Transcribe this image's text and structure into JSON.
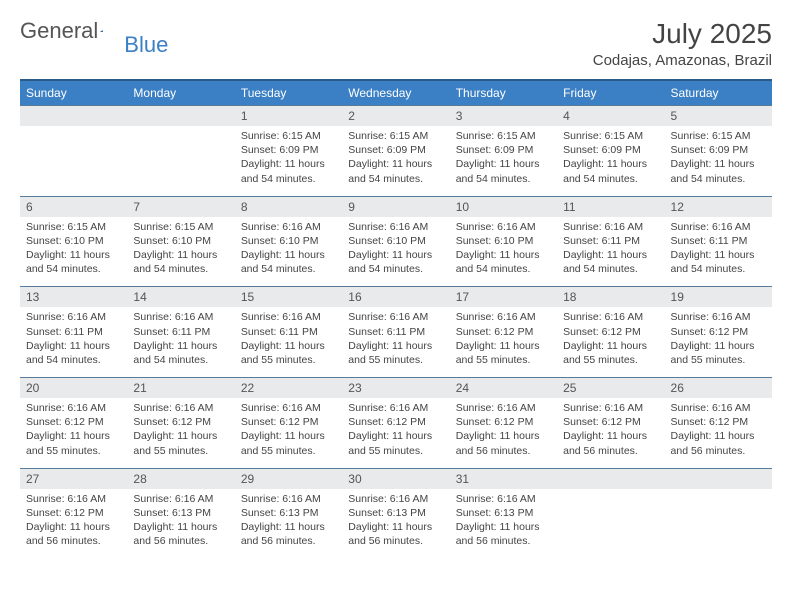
{
  "brand": {
    "name_a": "General",
    "name_b": "Blue"
  },
  "title": "July 2025",
  "location": "Codajas, Amazonas, Brazil",
  "day_headers": [
    "Sunday",
    "Monday",
    "Tuesday",
    "Wednesday",
    "Thursday",
    "Friday",
    "Saturday"
  ],
  "colors": {
    "header_bg": "#3b7fc4",
    "header_border_top": "#2a5a8a",
    "daynum_bg": "#e8eaec",
    "daynum_border_top": "#5a7a9a",
    "text": "#444444",
    "logo_gray": "#555555",
    "logo_blue": "#3b7fc4",
    "background": "#ffffff"
  },
  "typography": {
    "title_fontsize": 28,
    "location_fontsize": 15,
    "dow_fontsize": 12,
    "daynum_fontsize": 12,
    "info_fontsize": 10.5
  },
  "weeks": [
    {
      "nums": [
        "",
        "",
        "1",
        "2",
        "3",
        "4",
        "5"
      ],
      "info": [
        null,
        null,
        {
          "sunrise": "Sunrise: 6:15 AM",
          "sunset": "Sunset: 6:09 PM",
          "day1": "Daylight: 11 hours",
          "day2": "and 54 minutes."
        },
        {
          "sunrise": "Sunrise: 6:15 AM",
          "sunset": "Sunset: 6:09 PM",
          "day1": "Daylight: 11 hours",
          "day2": "and 54 minutes."
        },
        {
          "sunrise": "Sunrise: 6:15 AM",
          "sunset": "Sunset: 6:09 PM",
          "day1": "Daylight: 11 hours",
          "day2": "and 54 minutes."
        },
        {
          "sunrise": "Sunrise: 6:15 AM",
          "sunset": "Sunset: 6:09 PM",
          "day1": "Daylight: 11 hours",
          "day2": "and 54 minutes."
        },
        {
          "sunrise": "Sunrise: 6:15 AM",
          "sunset": "Sunset: 6:09 PM",
          "day1": "Daylight: 11 hours",
          "day2": "and 54 minutes."
        }
      ]
    },
    {
      "nums": [
        "6",
        "7",
        "8",
        "9",
        "10",
        "11",
        "12"
      ],
      "info": [
        {
          "sunrise": "Sunrise: 6:15 AM",
          "sunset": "Sunset: 6:10 PM",
          "day1": "Daylight: 11 hours",
          "day2": "and 54 minutes."
        },
        {
          "sunrise": "Sunrise: 6:15 AM",
          "sunset": "Sunset: 6:10 PM",
          "day1": "Daylight: 11 hours",
          "day2": "and 54 minutes."
        },
        {
          "sunrise": "Sunrise: 6:16 AM",
          "sunset": "Sunset: 6:10 PM",
          "day1": "Daylight: 11 hours",
          "day2": "and 54 minutes."
        },
        {
          "sunrise": "Sunrise: 6:16 AM",
          "sunset": "Sunset: 6:10 PM",
          "day1": "Daylight: 11 hours",
          "day2": "and 54 minutes."
        },
        {
          "sunrise": "Sunrise: 6:16 AM",
          "sunset": "Sunset: 6:10 PM",
          "day1": "Daylight: 11 hours",
          "day2": "and 54 minutes."
        },
        {
          "sunrise": "Sunrise: 6:16 AM",
          "sunset": "Sunset: 6:11 PM",
          "day1": "Daylight: 11 hours",
          "day2": "and 54 minutes."
        },
        {
          "sunrise": "Sunrise: 6:16 AM",
          "sunset": "Sunset: 6:11 PM",
          "day1": "Daylight: 11 hours",
          "day2": "and 54 minutes."
        }
      ]
    },
    {
      "nums": [
        "13",
        "14",
        "15",
        "16",
        "17",
        "18",
        "19"
      ],
      "info": [
        {
          "sunrise": "Sunrise: 6:16 AM",
          "sunset": "Sunset: 6:11 PM",
          "day1": "Daylight: 11 hours",
          "day2": "and 54 minutes."
        },
        {
          "sunrise": "Sunrise: 6:16 AM",
          "sunset": "Sunset: 6:11 PM",
          "day1": "Daylight: 11 hours",
          "day2": "and 54 minutes."
        },
        {
          "sunrise": "Sunrise: 6:16 AM",
          "sunset": "Sunset: 6:11 PM",
          "day1": "Daylight: 11 hours",
          "day2": "and 55 minutes."
        },
        {
          "sunrise": "Sunrise: 6:16 AM",
          "sunset": "Sunset: 6:11 PM",
          "day1": "Daylight: 11 hours",
          "day2": "and 55 minutes."
        },
        {
          "sunrise": "Sunrise: 6:16 AM",
          "sunset": "Sunset: 6:12 PM",
          "day1": "Daylight: 11 hours",
          "day2": "and 55 minutes."
        },
        {
          "sunrise": "Sunrise: 6:16 AM",
          "sunset": "Sunset: 6:12 PM",
          "day1": "Daylight: 11 hours",
          "day2": "and 55 minutes."
        },
        {
          "sunrise": "Sunrise: 6:16 AM",
          "sunset": "Sunset: 6:12 PM",
          "day1": "Daylight: 11 hours",
          "day2": "and 55 minutes."
        }
      ]
    },
    {
      "nums": [
        "20",
        "21",
        "22",
        "23",
        "24",
        "25",
        "26"
      ],
      "info": [
        {
          "sunrise": "Sunrise: 6:16 AM",
          "sunset": "Sunset: 6:12 PM",
          "day1": "Daylight: 11 hours",
          "day2": "and 55 minutes."
        },
        {
          "sunrise": "Sunrise: 6:16 AM",
          "sunset": "Sunset: 6:12 PM",
          "day1": "Daylight: 11 hours",
          "day2": "and 55 minutes."
        },
        {
          "sunrise": "Sunrise: 6:16 AM",
          "sunset": "Sunset: 6:12 PM",
          "day1": "Daylight: 11 hours",
          "day2": "and 55 minutes."
        },
        {
          "sunrise": "Sunrise: 6:16 AM",
          "sunset": "Sunset: 6:12 PM",
          "day1": "Daylight: 11 hours",
          "day2": "and 55 minutes."
        },
        {
          "sunrise": "Sunrise: 6:16 AM",
          "sunset": "Sunset: 6:12 PM",
          "day1": "Daylight: 11 hours",
          "day2": "and 56 minutes."
        },
        {
          "sunrise": "Sunrise: 6:16 AM",
          "sunset": "Sunset: 6:12 PM",
          "day1": "Daylight: 11 hours",
          "day2": "and 56 minutes."
        },
        {
          "sunrise": "Sunrise: 6:16 AM",
          "sunset": "Sunset: 6:12 PM",
          "day1": "Daylight: 11 hours",
          "day2": "and 56 minutes."
        }
      ]
    },
    {
      "nums": [
        "27",
        "28",
        "29",
        "30",
        "31",
        "",
        ""
      ],
      "info": [
        {
          "sunrise": "Sunrise: 6:16 AM",
          "sunset": "Sunset: 6:12 PM",
          "day1": "Daylight: 11 hours",
          "day2": "and 56 minutes."
        },
        {
          "sunrise": "Sunrise: 6:16 AM",
          "sunset": "Sunset: 6:13 PM",
          "day1": "Daylight: 11 hours",
          "day2": "and 56 minutes."
        },
        {
          "sunrise": "Sunrise: 6:16 AM",
          "sunset": "Sunset: 6:13 PM",
          "day1": "Daylight: 11 hours",
          "day2": "and 56 minutes."
        },
        {
          "sunrise": "Sunrise: 6:16 AM",
          "sunset": "Sunset: 6:13 PM",
          "day1": "Daylight: 11 hours",
          "day2": "and 56 minutes."
        },
        {
          "sunrise": "Sunrise: 6:16 AM",
          "sunset": "Sunset: 6:13 PM",
          "day1": "Daylight: 11 hours",
          "day2": "and 56 minutes."
        },
        null,
        null
      ]
    }
  ]
}
